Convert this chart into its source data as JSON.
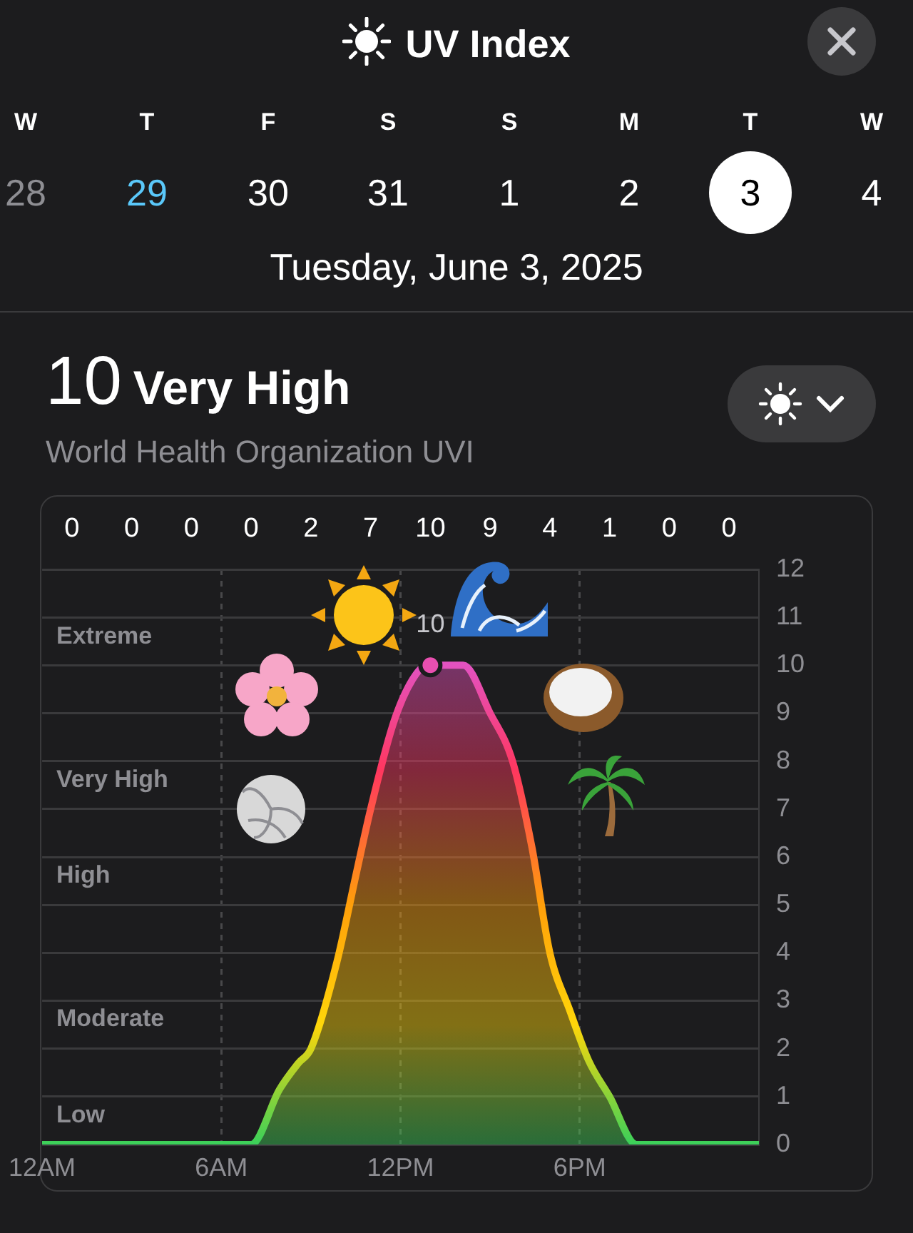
{
  "chart_data": {
    "type": "area",
    "title": "UV Index",
    "subtitle": "Tuesday, June 3, 2025",
    "annotations": [
      "W",
      "T",
      "F",
      "S",
      "S",
      "M",
      "T",
      "W",
      "28",
      "29",
      "30",
      "31",
      "1",
      "2",
      "3",
      "4",
      "10",
      "Very High",
      "World Health Organization UVI",
      {
        "text": "10",
        "x": "2025-06-03T13:00",
        "y": 10
      },
      "Low",
      "Moderate",
      "High",
      "Very High",
      "Extreme",
      "0",
      "0",
      "0",
      "0",
      "2",
      "7",
      "10",
      "9",
      "4",
      "1",
      "0",
      "0"
    ],
    "xlim": [
      "2025-06-03T00:00",
      "2025-06-04T00:00"
    ],
    "xticks": [
      {
        "value": "2025-06-03T00:00",
        "label": "12AM"
      },
      {
        "value": "2025-06-03T06:00",
        "label": "6AM"
      },
      {
        "value": "2025-06-03T12:00",
        "label": "12PM"
      },
      {
        "value": "2025-06-03T18:00",
        "label": "6PM"
      }
    ],
    "ylim": [
      0,
      12
    ],
    "yticks": [
      0,
      1,
      2,
      3,
      4,
      5,
      6,
      7,
      8,
      9,
      10,
      11,
      12
    ],
    "grid": true,
    "legend": false,
    "line_style": "solid",
    "series": [
      {
        "color": "#3ad05a",
        "x": [
          "2025-06-03T00:00",
          "2025-06-03T01:00",
          "2025-06-03T03:00",
          "2025-06-03T05:00",
          "2025-06-03T07:00",
          "2025-06-03T07:57",
          "2025-06-03T08:35",
          "2025-06-03T09:00",
          "2025-06-03T09:52",
          "2025-06-03T10:30",
          "2025-06-03T11:00",
          "2025-06-03T11:46",
          "2025-06-03T12:24",
          "2025-06-03T12:54",
          "2025-06-03T13:00",
          "2025-06-03T14:06",
          "2025-06-03T15:00",
          "2025-06-03T15:45",
          "2025-06-03T16:24",
          "2025-06-03T17:00",
          "2025-06-03T17:40",
          "2025-06-03T18:18",
          "2025-06-03T19:00",
          "2025-06-03T19:54",
          "2025-06-03T21:00",
          "2025-06-03T23:00",
          "2025-06-04T00:00"
        ],
        "values": [
          0,
          0,
          0,
          0,
          0,
          1.15,
          1.7,
          2,
          3.8,
          5.6,
          7,
          8.8,
          9.7,
          10,
          10,
          10,
          9,
          8,
          6.2,
          4,
          2.8,
          1.75,
          1,
          0,
          0,
          0,
          0
        ]
      },
      {
        "type": "scatter",
        "color": "#e94fb0",
        "marker": "circle",
        "x": [
          "2025-06-03T13:00"
        ],
        "values": [
          10
        ]
      }
    ]
  }
}
